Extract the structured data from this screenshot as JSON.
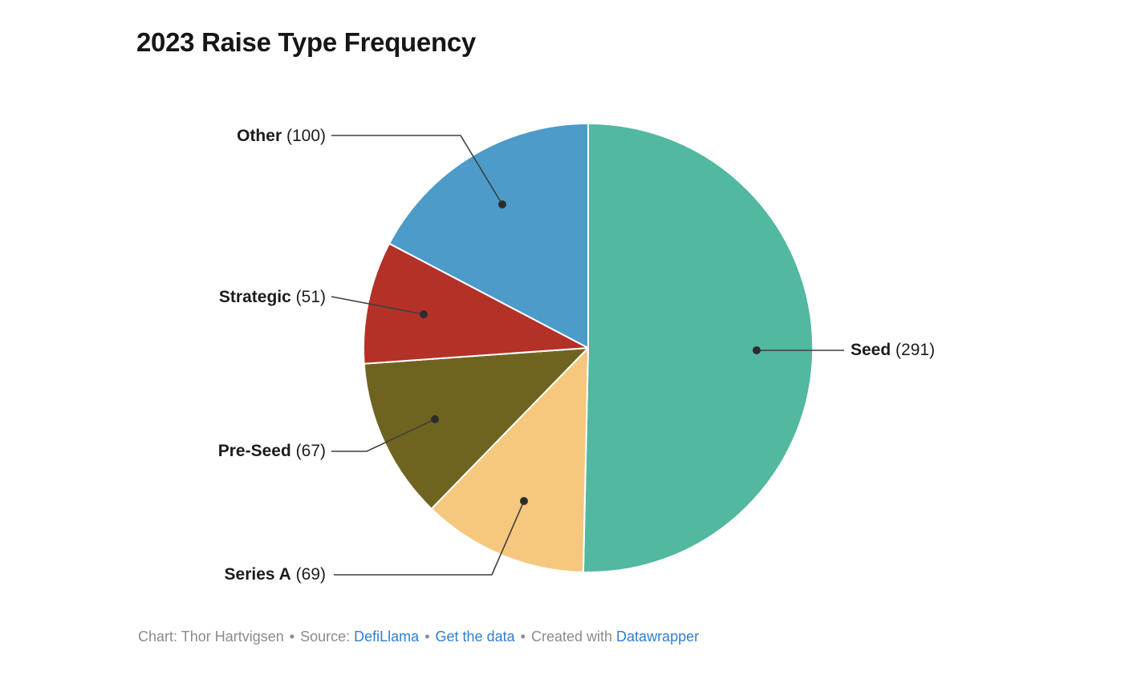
{
  "title": "2023 Raise Type Frequency",
  "chart_data": {
    "type": "pie",
    "title": "2023 Raise Type Frequency",
    "total": 578,
    "start_angle_deg": 0,
    "direction": "clockwise",
    "legend_position": "none",
    "label_style": "external callouts with leader lines",
    "slices": [
      {
        "label": "Seed",
        "value": 291,
        "color": "#52b8a0"
      },
      {
        "label": "Series A",
        "value": 69,
        "color": "#f5c87d"
      },
      {
        "label": "Pre-Seed",
        "value": 67,
        "color": "#6e6420"
      },
      {
        "label": "Strategic",
        "value": 51,
        "color": "#b43128"
      },
      {
        "label": "Other",
        "value": 100,
        "color": "#4c9bc8"
      }
    ]
  },
  "callouts": {
    "seed": {
      "name": "Seed",
      "count": "(291)"
    },
    "other": {
      "name": "Other",
      "count": "(100)"
    },
    "strategic": {
      "name": "Strategic",
      "count": "(51)"
    },
    "preseed": {
      "name": "Pre-Seed",
      "count": "(67)"
    },
    "seriesa": {
      "name": "Series A",
      "count": "(69)"
    }
  },
  "footer": {
    "credit": "Chart: Thor Hartvigsen",
    "separator": "•",
    "source_label": "Source:",
    "source_link": "DefiLlama",
    "get_data_link": "Get the data",
    "created_with_label": "Created with",
    "tool_link": "Datawrapper",
    "link_color": "#2f7ed3"
  }
}
